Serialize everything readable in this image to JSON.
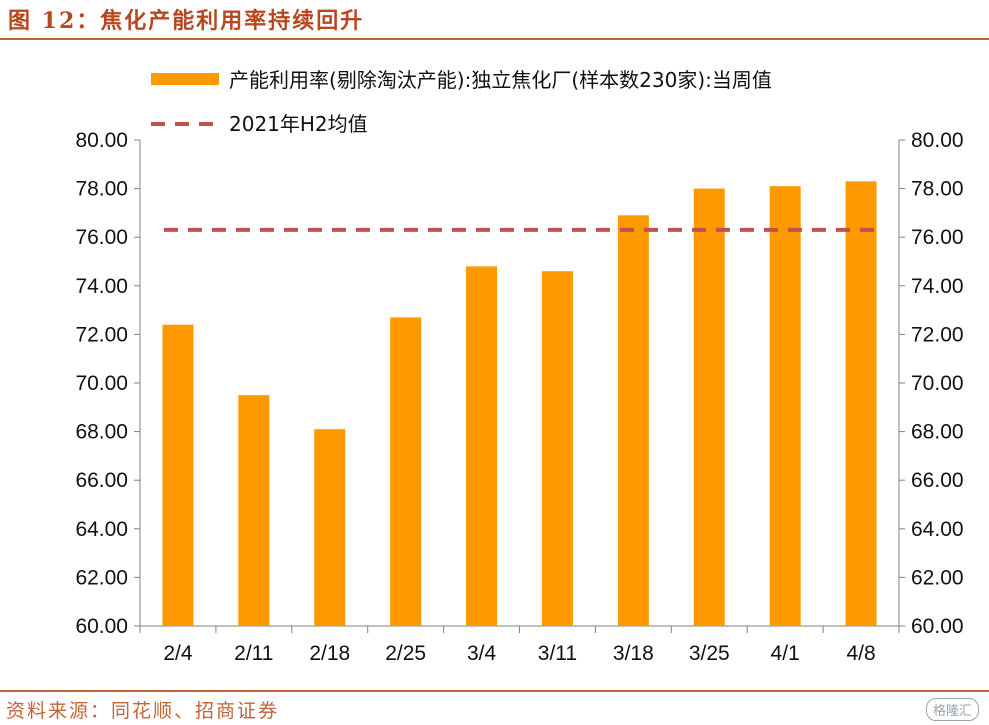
{
  "header": {
    "figure_title": "图 12：焦化产能利用率持续回升"
  },
  "footer": {
    "source": "资料来源：同花顺、招商证券",
    "watermark": "格隆汇"
  },
  "colors": {
    "bar": "#ff9900",
    "reference_line": "#c0504d",
    "title": "#b9471e",
    "axis": "#808080"
  },
  "chart_data": {
    "type": "bar",
    "categories": [
      "2/4",
      "2/11",
      "2/18",
      "2/25",
      "3/4",
      "3/11",
      "3/18",
      "3/25",
      "4/1",
      "4/8"
    ],
    "series": [
      {
        "name": "产能利用率(剔除淘汰产能):独立焦化厂(样本数230家):当周值",
        "type": "bar",
        "values": [
          72.4,
          69.5,
          68.1,
          72.7,
          74.8,
          74.6,
          76.9,
          78.0,
          78.1,
          78.3
        ]
      },
      {
        "name": "2021年H2均值",
        "type": "line",
        "style": "dashed",
        "values": [
          76.3,
          76.3,
          76.3,
          76.3,
          76.3,
          76.3,
          76.3,
          76.3,
          76.3,
          76.3
        ]
      }
    ],
    "ylim": [
      60,
      80
    ],
    "yticks": [
      "60.00",
      "62.00",
      "64.00",
      "66.00",
      "68.00",
      "70.00",
      "72.00",
      "74.00",
      "76.00",
      "78.00",
      "80.00"
    ],
    "secondary_yticks": [
      "60.00",
      "62.00",
      "64.00",
      "66.00",
      "68.00",
      "70.00",
      "72.00",
      "74.00",
      "76.00",
      "78.00",
      "80.00"
    ],
    "legend_position": "top",
    "grid": false
  }
}
